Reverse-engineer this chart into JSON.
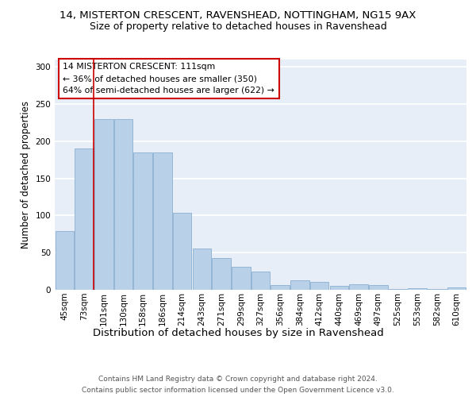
{
  "title1": "14, MISTERTON CRESCENT, RAVENSHEAD, NOTTINGHAM, NG15 9AX",
  "title2": "Size of property relative to detached houses in Ravenshead",
  "xlabel": "Distribution of detached houses by size in Ravenshead",
  "ylabel": "Number of detached properties",
  "categories": [
    "45sqm",
    "73sqm",
    "101sqm",
    "130sqm",
    "158sqm",
    "186sqm",
    "214sqm",
    "243sqm",
    "271sqm",
    "299sqm",
    "327sqm",
    "356sqm",
    "384sqm",
    "412sqm",
    "440sqm",
    "469sqm",
    "497sqm",
    "525sqm",
    "553sqm",
    "582sqm",
    "610sqm"
  ],
  "values": [
    79,
    190,
    230,
    230,
    185,
    185,
    104,
    56,
    43,
    31,
    25,
    6,
    13,
    11,
    5,
    7,
    6,
    1,
    2,
    1,
    3
  ],
  "bar_color": "#b8d0e8",
  "bar_edge_color": "#8ab0d0",
  "bg_color": "#e8eef8",
  "grid_color": "#ffffff",
  "vline_color": "#cc0000",
  "vline_pos": 1.5,
  "annotation_text": "14 MISTERTON CRESCENT: 111sqm\n← 36% of detached houses are smaller (350)\n64% of semi-detached houses are larger (622) →",
  "annotation_box_color": "#ffffff",
  "annotation_box_edge": "#cc0000",
  "footer1": "Contains HM Land Registry data © Crown copyright and database right 2024.",
  "footer2": "Contains public sector information licensed under the Open Government Licence v3.0.",
  "ylim": [
    0,
    310
  ],
  "title1_fontsize": 9.5,
  "title2_fontsize": 9,
  "xlabel_fontsize": 9.5,
  "ylabel_fontsize": 8.5,
  "tick_fontsize": 7.5,
  "footer_fontsize": 6.5
}
